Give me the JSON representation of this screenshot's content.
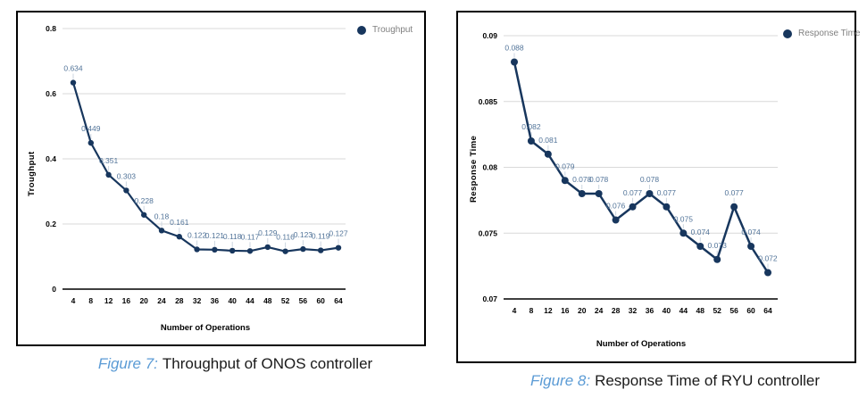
{
  "figures": [
    {
      "caption_label": "Figure 7:",
      "caption_text": "Throughput of ONOS controller"
    },
    {
      "caption_label": "Figure 8:",
      "caption_text": "Response Time of RYU controller"
    }
  ],
  "chart_data": [
    {
      "type": "line",
      "title": "",
      "xlabel": "Number of Operations",
      "ylabel": "Troughput",
      "legend_label": "Troughput",
      "legend_position": "top-right",
      "grid": true,
      "x": [
        4,
        8,
        12,
        16,
        20,
        24,
        28,
        32,
        36,
        40,
        44,
        48,
        52,
        56,
        60,
        64
      ],
      "series": [
        {
          "name": "Troughput",
          "values": [
            0.634,
            0.449,
            0.351,
            0.303,
            0.228,
            0.18,
            0.161,
            0.122,
            0.121,
            0.118,
            0.117,
            0.129,
            0.116,
            0.123,
            0.119,
            0.127
          ],
          "point_labels": [
            "0.634",
            "0.449",
            "0.351",
            "0.303",
            "0.228",
            "0.18",
            "0.161",
            "0.122",
            "0.121",
            "0.118",
            "0.117",
            "0.129",
            "0.116",
            "0.123",
            "0.119",
            "0.127"
          ]
        }
      ],
      "ylim": [
        0,
        0.8
      ],
      "yticks": [
        {
          "value": 0.8,
          "label": "0.8"
        },
        {
          "value": 0.6,
          "label": "0.6"
        },
        {
          "value": 0.4,
          "label": "0.4"
        },
        {
          "value": 0.2,
          "label": "0.2"
        },
        {
          "value": 0,
          "label": "0"
        }
      ],
      "colors": {
        "series": "#17365d",
        "point_label": "#527499",
        "grid": "#d9d9d9",
        "axis_line": "#3f3f3f",
        "leader": "#ccd6e0",
        "tick_label": "#000000",
        "legend_text": "#7f7f7f"
      }
    },
    {
      "type": "line",
      "title": "",
      "xlabel": "Number of Operations",
      "ylabel": "Response Time",
      "legend_label": "Response Time",
      "legend_position": "top-right",
      "grid": true,
      "x": [
        4,
        8,
        12,
        16,
        20,
        24,
        28,
        32,
        36,
        40,
        44,
        48,
        52,
        56,
        60,
        64
      ],
      "series": [
        {
          "name": "Response Time",
          "values": [
            0.088,
            0.082,
            0.081,
            0.079,
            0.078,
            0.078,
            0.076,
            0.077,
            0.078,
            0.077,
            0.075,
            0.074,
            0.073,
            0.077,
            0.074,
            0.072
          ],
          "point_labels": [
            "0.088",
            "0.082",
            "0.081",
            "0.079",
            "0.078",
            "0.078",
            "0.076",
            "0.077",
            "0.078",
            "0.077",
            "0.075",
            "0.074",
            "0.073",
            "0.077",
            "0.074",
            "0.072"
          ]
        }
      ],
      "ylim": [
        0.07,
        0.09
      ],
      "yticks": [
        {
          "value": 0.09,
          "label": "0.09"
        },
        {
          "value": 0.085,
          "label": "0.085"
        },
        {
          "value": 0.08,
          "label": "0.08"
        },
        {
          "value": 0.075,
          "label": "0.075"
        },
        {
          "value": 0.07,
          "label": "0.07"
        }
      ],
      "colors": {
        "series": "#17365d",
        "point_label": "#527499",
        "grid": "#d9d9d9",
        "axis_line": "#3f3f3f",
        "leader": "#ccd6e0",
        "tick_label": "#000000",
        "legend_text": "#7f7f7f"
      }
    }
  ]
}
